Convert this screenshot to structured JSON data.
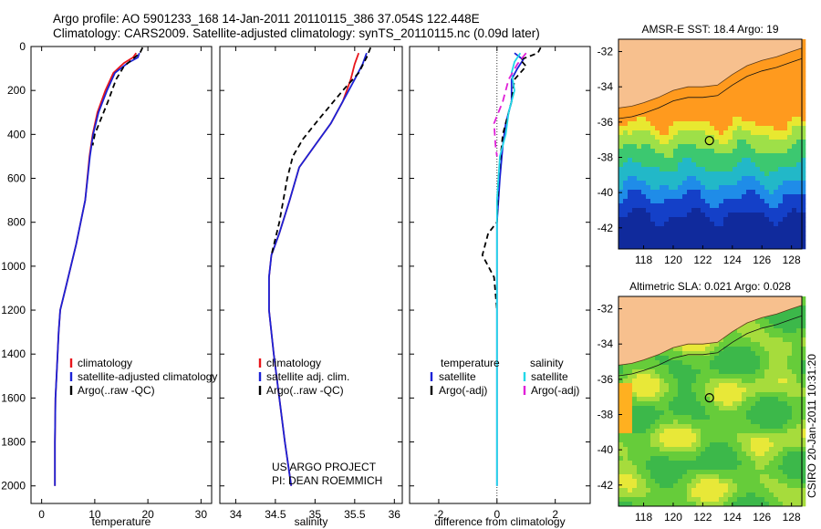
{
  "header": {
    "line1": "Argo profile: AO 5901233_168 14-Jan-2011 20110115_386 37.054S 122.448E",
    "line2": "Climatology: CARS2009. Satellite-adjusted climatology: synTS_20110115.nc (0.09d later)"
  },
  "colors": {
    "climatology": "#e8151b",
    "satellite": "#1b22d6",
    "argo": "#000000",
    "sal_sat": "#22d8e8",
    "sal_argo": "#e020d8",
    "land": "#f7c08e"
  },
  "chart_data": [
    {
      "type": "line",
      "id": "temperature",
      "xlabel": "temperature",
      "ylabel": "",
      "xlim": [
        -2,
        32
      ],
      "ylim": [
        2080,
        0
      ],
      "y_inverted": true,
      "xticks": [
        0,
        10,
        20,
        30
      ],
      "yticks": [
        0,
        200,
        400,
        600,
        800,
        1000,
        1200,
        1400,
        1600,
        1800,
        2000
      ],
      "legend": {
        "position": "lower-middle",
        "items": [
          "climatology",
          "satellite-adjusted climatology",
          "Argo(..raw -QC)"
        ]
      },
      "series": [
        {
          "name": "climatology",
          "color": "#e8151b",
          "dash": "",
          "x": [
            17.8,
            17.2,
            15.5,
            13.5,
            12.0,
            10.5,
            9.6,
            9.0,
            8.2,
            6.5,
            4.5,
            3.5,
            3.2,
            2.8,
            2.6,
            2.5,
            2.5
          ],
          "y": [
            30,
            50,
            75,
            120,
            200,
            300,
            400,
            500,
            700,
            900,
            1100,
            1200,
            1300,
            1500,
            1600,
            1800,
            2000
          ]
        },
        {
          "name": "satellite-adjusted climatology",
          "color": "#1b22d6",
          "dash": "",
          "x": [
            18.4,
            18.1,
            16.2,
            13.8,
            12.3,
            10.7,
            9.7,
            9.1,
            8.2,
            6.5,
            4.5,
            3.5,
            3.2,
            2.8,
            2.6,
            2.5,
            2.5
          ],
          "y": [
            30,
            50,
            75,
            120,
            200,
            300,
            400,
            500,
            700,
            900,
            1100,
            1200,
            1300,
            1500,
            1600,
            1800,
            2000
          ]
        },
        {
          "name": "Argo(..raw -QC)",
          "color": "#000000",
          "dash": "6,4",
          "x": [
            19.0,
            18.5,
            17.0,
            15.5,
            14.0,
            12.5,
            10.0,
            9.6
          ],
          "y": [
            5,
            30,
            60,
            90,
            150,
            250,
            400,
            450
          ]
        }
      ]
    },
    {
      "type": "line",
      "id": "salinity",
      "xlabel": "salinity",
      "ylabel": "",
      "xlim": [
        33.8,
        36.1
      ],
      "ylim": [
        2080,
        0
      ],
      "y_inverted": true,
      "xticks": [
        34,
        34.5,
        35,
        35.5,
        36
      ],
      "legend": {
        "position": "lower-middle",
        "items": [
          "climatology",
          "satellite adj. clim.",
          "Argo(..raw -QC)"
        ]
      },
      "annotation": [
        "US ARGO PROJECT",
        "PI: DEAN ROEMMICH"
      ],
      "series": [
        {
          "name": "climatology",
          "color": "#e8151b",
          "dash": "",
          "x": [
            35.55,
            35.5,
            35.45,
            35.35,
            35.2,
            35.0,
            34.8,
            34.68,
            34.55,
            34.45,
            34.42,
            34.42,
            34.48,
            34.55,
            34.62,
            34.68,
            34.7
          ],
          "y": [
            30,
            80,
            150,
            250,
            350,
            450,
            550,
            700,
            850,
            950,
            1050,
            1200,
            1400,
            1600,
            1800,
            1950,
            2000
          ]
        },
        {
          "name": "satellite adj. clim.",
          "color": "#1b22d6",
          "dash": "",
          "x": [
            35.65,
            35.6,
            35.5,
            35.35,
            35.2,
            35.0,
            34.8,
            34.68,
            34.55,
            34.45,
            34.42,
            34.42,
            34.48,
            34.55,
            34.62,
            34.68,
            34.7
          ],
          "y": [
            30,
            80,
            150,
            250,
            350,
            450,
            550,
            700,
            850,
            950,
            1050,
            1200,
            1400,
            1600,
            1800,
            1950,
            2000
          ]
        },
        {
          "name": "Argo(..raw -QC)",
          "color": "#000000",
          "dash": "6,4",
          "x": [
            35.7,
            35.65,
            35.55,
            35.35,
            35.05,
            34.85,
            34.72,
            34.65,
            34.55,
            34.45
          ],
          "y": [
            5,
            50,
            120,
            200,
            330,
            420,
            500,
            600,
            800,
            950
          ]
        }
      ]
    },
    {
      "type": "line",
      "id": "difference",
      "xlabel": "difference from climatology",
      "ylabel": "",
      "xlim": [
        -3,
        3.2
      ],
      "ylim": [
        2080,
        0
      ],
      "y_inverted": true,
      "xticks": [
        -2,
        0,
        2
      ],
      "legend": {
        "position": "lower-middle",
        "groups": [
          {
            "title": "temperature",
            "items": [
              "satellite",
              "Argo(-adj)"
            ]
          },
          {
            "title": "salinity",
            "items": [
              "satellite",
              "Argo(-adj)"
            ]
          }
        ]
      },
      "series": [
        {
          "name": "temperature satellite",
          "color": "#1b22d6",
          "dash": "",
          "x": [
            0.6,
            0.9,
            0.7,
            0.5,
            0.5,
            0.3,
            0.2,
            0.1,
            0.0,
            0.0,
            0.0,
            0.0,
            0.0,
            0.0
          ],
          "y": [
            30,
            60,
            100,
            150,
            250,
            350,
            450,
            600,
            800,
            1000,
            1200,
            1500,
            1800,
            2000
          ]
        },
        {
          "name": "temperature Argo(-adj)",
          "color": "#000000",
          "dash": "6,4",
          "x": [
            1.5,
            1.4,
            0.8,
            1.0,
            0.6,
            0.5,
            0.2,
            0.05,
            0.0,
            -0.3,
            -0.5,
            -0.1,
            0.0
          ],
          "y": [
            5,
            30,
            60,
            90,
            150,
            250,
            400,
            600,
            800,
            850,
            950,
            1050,
            1200
          ]
        },
        {
          "name": "salinity satellite",
          "color": "#22d8e8",
          "dash": "",
          "x": [
            0.8,
            0.6,
            0.5,
            0.6,
            0.4,
            0.3,
            0.1,
            0.0,
            0.0,
            0.0,
            0.0,
            0.0
          ],
          "y": [
            30,
            70,
            120,
            200,
            300,
            400,
            500,
            700,
            1000,
            1300,
            1600,
            2000
          ]
        },
        {
          "name": "salinity Argo(-adj)",
          "color": "#e020d8",
          "dash": "8,5",
          "x": [
            1.0,
            0.7,
            0.4,
            0.2,
            -0.1,
            -0.05,
            0.0
          ],
          "y": [
            30,
            80,
            150,
            250,
            350,
            450,
            500
          ]
        }
      ]
    }
  ],
  "maps": [
    {
      "id": "sst",
      "title": "AMSR-E SST: 18.4 Argo: 19",
      "yticks": [
        -32,
        -34,
        -36,
        -38,
        -40,
        -42
      ],
      "xticks": [
        118,
        120,
        122,
        124,
        126,
        128
      ],
      "marker": {
        "lon": 122.45,
        "lat": -37.05
      }
    },
    {
      "id": "sla",
      "title": "Altimetric SLA: 0.021 Argo: 0.028",
      "yticks": [
        -32,
        -34,
        -36,
        -38,
        -40,
        -42
      ],
      "xticks": [
        118,
        120,
        122,
        124,
        126,
        128
      ],
      "marker": {
        "lon": 122.45,
        "lat": -37.05
      }
    }
  ],
  "footer": {
    "timestamp": "CSIRO 20-Jan-2011 10:31:20"
  }
}
